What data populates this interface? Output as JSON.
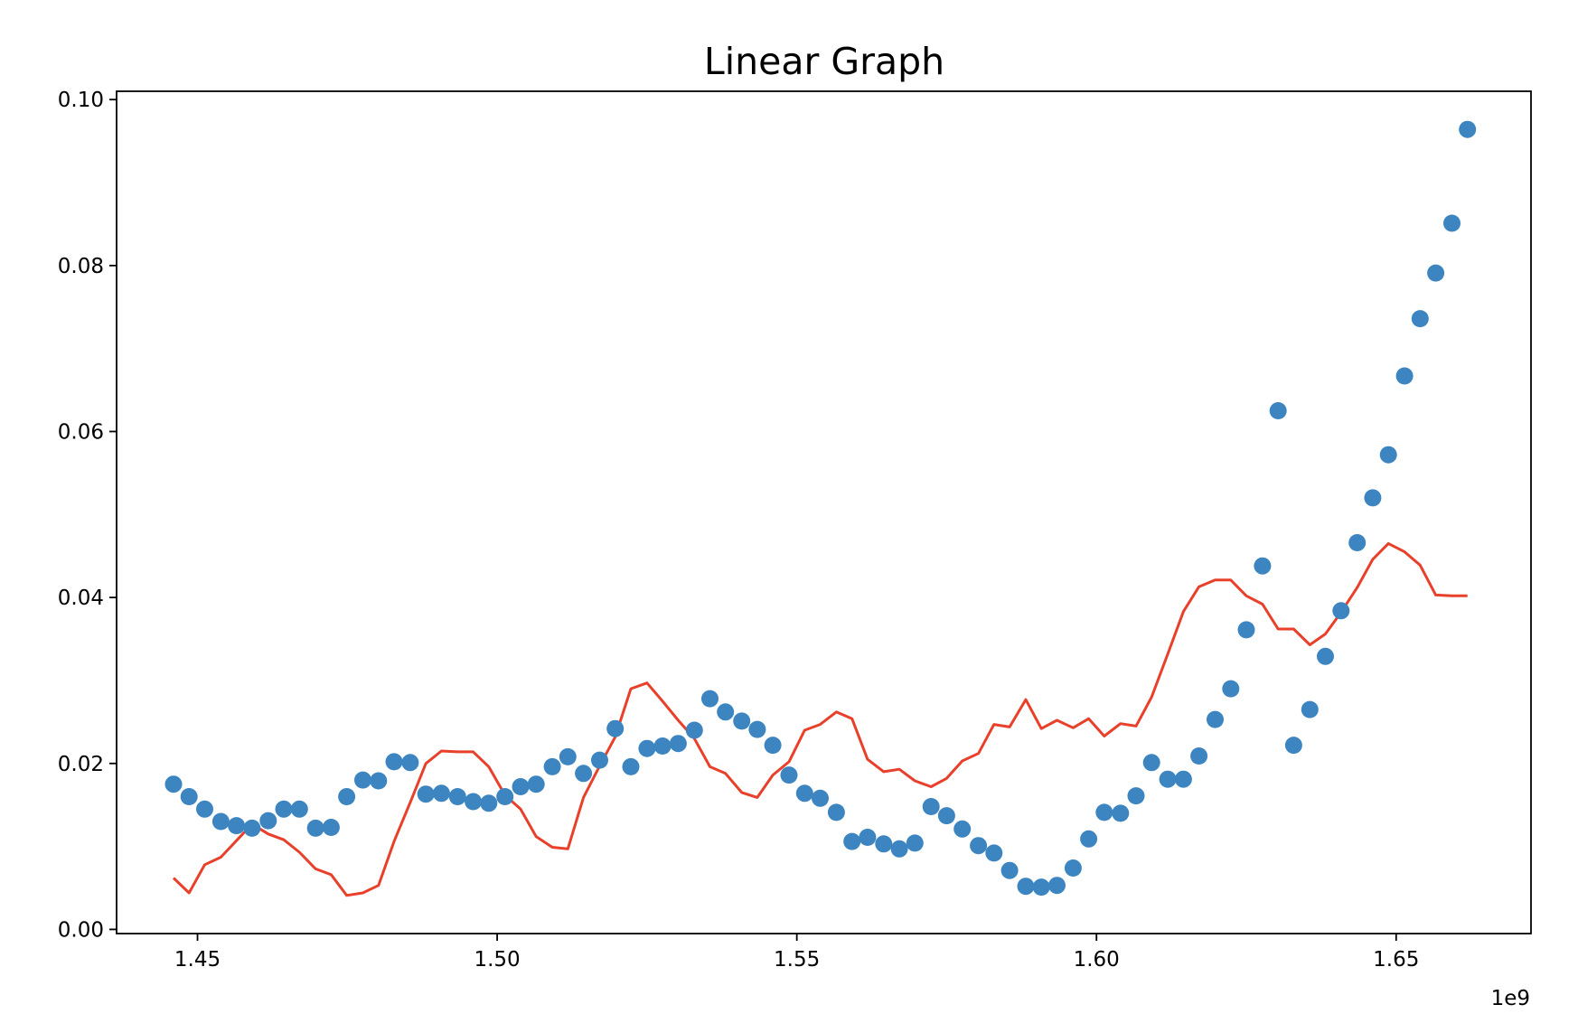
{
  "chart_data": {
    "type": "scatter",
    "title": "Linear Graph",
    "xlabel": "",
    "ylabel": "",
    "x_offset_label": "1e9",
    "xlim": [
      1.4365,
      1.6725
    ],
    "ylim": [
      -0.0005,
      0.101
    ],
    "x_ticks": [
      1.45,
      1.5,
      1.55,
      1.6,
      1.65
    ],
    "x_tick_labels": [
      "1.45",
      "1.50",
      "1.55",
      "1.60",
      "1.65"
    ],
    "y_ticks": [
      0.0,
      0.02,
      0.04,
      0.06,
      0.08,
      0.1
    ],
    "y_tick_labels": [
      "0.00",
      "0.02",
      "0.04",
      "0.06",
      "0.08",
      "0.10"
    ],
    "grid": false,
    "colors": {
      "scatter": "#3d85c0",
      "line": "#e8402a"
    },
    "series": [
      {
        "type": "scatter",
        "x": [
          1.446,
          1.4486,
          1.4512,
          1.4539,
          1.4565,
          1.4591,
          1.4618,
          1.4644,
          1.467,
          1.4697,
          1.4723,
          1.4749,
          1.4776,
          1.4802,
          1.4828,
          1.4855,
          1.4881,
          1.4907,
          1.4934,
          1.496,
          1.4986,
          1.5013,
          1.5039,
          1.5065,
          1.5092,
          1.5118,
          1.5144,
          1.5171,
          1.5197,
          1.5223,
          1.525,
          1.5276,
          1.5302,
          1.5329,
          1.5355,
          1.5381,
          1.5408,
          1.5434,
          1.546,
          1.5487,
          1.5513,
          1.5539,
          1.5566,
          1.5592,
          1.5618,
          1.5645,
          1.5671,
          1.5697,
          1.5724,
          1.575,
          1.5776,
          1.5803,
          1.5829,
          1.5855,
          1.5882,
          1.5908,
          1.5934,
          1.5961,
          1.5987,
          1.6013,
          1.604,
          1.6066,
          1.6092,
          1.6119,
          1.6145,
          1.6171,
          1.6198,
          1.6224,
          1.625,
          1.6277,
          1.6303,
          1.6329,
          1.6356,
          1.6382,
          1.6408,
          1.6435,
          1.6461,
          1.6487,
          1.6514,
          1.654,
          1.6566,
          1.6593,
          1.6619
        ],
        "y": [
          0.0175,
          0.016,
          0.0145,
          0.013,
          0.0125,
          0.0122,
          0.0131,
          0.0145,
          0.0145,
          0.0122,
          0.0123,
          0.016,
          0.018,
          0.0179,
          0.0202,
          0.0201,
          0.0163,
          0.0164,
          0.016,
          0.0154,
          0.0152,
          0.016,
          0.0172,
          0.0175,
          0.0196,
          0.0208,
          0.0188,
          0.0204,
          0.0242,
          0.0196,
          0.0218,
          0.0221,
          0.0224,
          0.024,
          0.0278,
          0.0262,
          0.0251,
          0.0241,
          0.0222,
          0.0186,
          0.0164,
          0.0158,
          0.0141,
          0.0106,
          0.0111,
          0.0103,
          0.0097,
          0.0104,
          0.0148,
          0.0137,
          0.0121,
          0.0101,
          0.0092,
          0.0071,
          0.0052,
          0.0051,
          0.0053,
          0.0074,
          0.0109,
          0.0141,
          0.014,
          0.0161,
          0.0201,
          0.0181,
          0.0181,
          0.0209,
          0.0253,
          0.029,
          0.0361,
          0.0438,
          0.0625,
          0.0222,
          0.0265,
          0.0329,
          0.0384,
          0.0466,
          0.052,
          0.0572,
          0.0667,
          0.0736,
          0.0791,
          0.0851,
          0.0964
        ]
      },
      {
        "type": "line",
        "x": [
          1.446,
          1.4486,
          1.4512,
          1.4539,
          1.4565,
          1.4591,
          1.4618,
          1.4644,
          1.467,
          1.4697,
          1.4723,
          1.4749,
          1.4776,
          1.4802,
          1.4828,
          1.4855,
          1.4881,
          1.4907,
          1.4934,
          1.496,
          1.4986,
          1.5013,
          1.5039,
          1.5065,
          1.5092,
          1.5118,
          1.5144,
          1.5171,
          1.5197,
          1.5223,
          1.525,
          1.5276,
          1.5302,
          1.5329,
          1.5355,
          1.5381,
          1.5408,
          1.5434,
          1.546,
          1.5487,
          1.5513,
          1.5539,
          1.5566,
          1.5592,
          1.5618,
          1.5645,
          1.5671,
          1.5697,
          1.5724,
          1.575,
          1.5776,
          1.5803,
          1.5829,
          1.5855,
          1.5882,
          1.5908,
          1.5934,
          1.5961,
          1.5987,
          1.6013,
          1.604,
          1.6066,
          1.6092,
          1.6119,
          1.6145,
          1.6171,
          1.6198,
          1.6224,
          1.625,
          1.6277,
          1.6303,
          1.6329,
          1.6356,
          1.6382,
          1.6408,
          1.6435,
          1.6461,
          1.6487,
          1.6514,
          1.654,
          1.6566,
          1.6593,
          1.6619
        ],
        "y": [
          0.0062,
          0.0044,
          0.0078,
          0.0087,
          0.0107,
          0.0127,
          0.0115,
          0.0108,
          0.0093,
          0.0073,
          0.0066,
          0.0041,
          0.0044,
          0.0053,
          0.0106,
          0.0153,
          0.02,
          0.0215,
          0.0214,
          0.0214,
          0.0196,
          0.0162,
          0.0145,
          0.0112,
          0.0099,
          0.0097,
          0.0159,
          0.0197,
          0.0232,
          0.029,
          0.0297,
          0.0275,
          0.0252,
          0.023,
          0.0196,
          0.0188,
          0.0165,
          0.0159,
          0.0186,
          0.0202,
          0.024,
          0.0247,
          0.0262,
          0.0254,
          0.0205,
          0.019,
          0.0193,
          0.0179,
          0.0172,
          0.0182,
          0.0203,
          0.0212,
          0.0247,
          0.0244,
          0.0277,
          0.0242,
          0.0252,
          0.0243,
          0.0254,
          0.0233,
          0.0248,
          0.0245,
          0.028,
          0.0332,
          0.0383,
          0.0413,
          0.0421,
          0.0421,
          0.0402,
          0.0392,
          0.0362,
          0.0362,
          0.0343,
          0.0356,
          0.0382,
          0.0412,
          0.0446,
          0.0465,
          0.0455,
          0.0439,
          0.0403,
          0.0402,
          0.0402
        ]
      }
    ]
  }
}
